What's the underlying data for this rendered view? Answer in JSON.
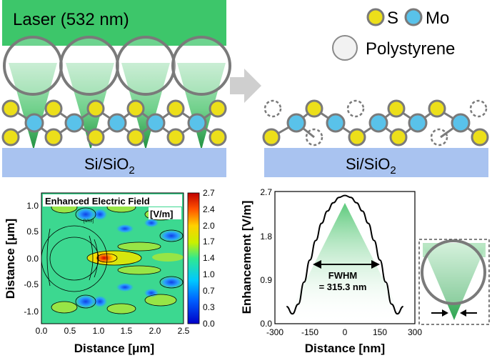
{
  "top_left": {
    "laser_label": "Laser (532 nm)",
    "substrate_main": "Si/SiO",
    "substrate_sub": "2"
  },
  "top_right": {
    "substrate_main": "Si/SiO",
    "substrate_sub": "2"
  },
  "legend": {
    "s_label": "S",
    "mo_label": "Mo",
    "polystyrene_label": "Polystyrene"
  },
  "colors": {
    "laser_green": "#3dc66a",
    "substrate_blue": "#a9c3f0",
    "sulfur_yellow": "#ecdf1a",
    "molybdenum_blue": "#59c2ea",
    "bead_gray": "#7a7a7a",
    "arrow_gray": "#cfcfcf"
  },
  "field_map": {
    "title": "Enhanced Electric Field",
    "unit": "[V/m]",
    "small_label": "[V/m]",
    "xlabel": "Distance [μm]",
    "ylabel": "Distance [μm]",
    "x_ticks": [
      "0.0",
      "0.5",
      "1.0",
      "1.5",
      "2.0",
      "2.5"
    ],
    "y_ticks": [
      "1.0",
      "0.5",
      "0.0",
      "-0.5",
      "-1.0"
    ],
    "colorbar_ticks": [
      "2.7",
      "2.4",
      "2.0",
      "1.7",
      "1.4",
      "1.0",
      "0.7",
      "0.3",
      "0.0"
    ]
  },
  "chart_data": {
    "type": "line",
    "xlabel": "Distance [nm]",
    "ylabel": "Enhancement [V/m]",
    "x_ticks": [
      "-300",
      "-150",
      "0",
      "150",
      "300"
    ],
    "y_ticks": [
      "2.7",
      "1.8",
      "0.9",
      "0.0"
    ],
    "xlim": [
      -300,
      300
    ],
    "ylim": [
      0,
      2.7
    ],
    "series": [
      {
        "x": [
          -250,
          -225,
          -200,
          -175,
          -150,
          -125,
          -100,
          -75,
          -50,
          -25,
          0,
          25,
          50,
          75,
          100,
          125,
          150,
          175,
          200,
          225,
          250
        ],
        "values": [
          0.35,
          0.2,
          0.4,
          0.85,
          1.3,
          1.7,
          2.05,
          2.3,
          2.47,
          2.58,
          2.62,
          2.58,
          2.47,
          2.3,
          2.05,
          1.7,
          1.3,
          0.85,
          0.4,
          0.2,
          0.35
        ]
      }
    ],
    "annotation_line1": "FWHM",
    "annotation_line2": "= 315.3 nm"
  }
}
